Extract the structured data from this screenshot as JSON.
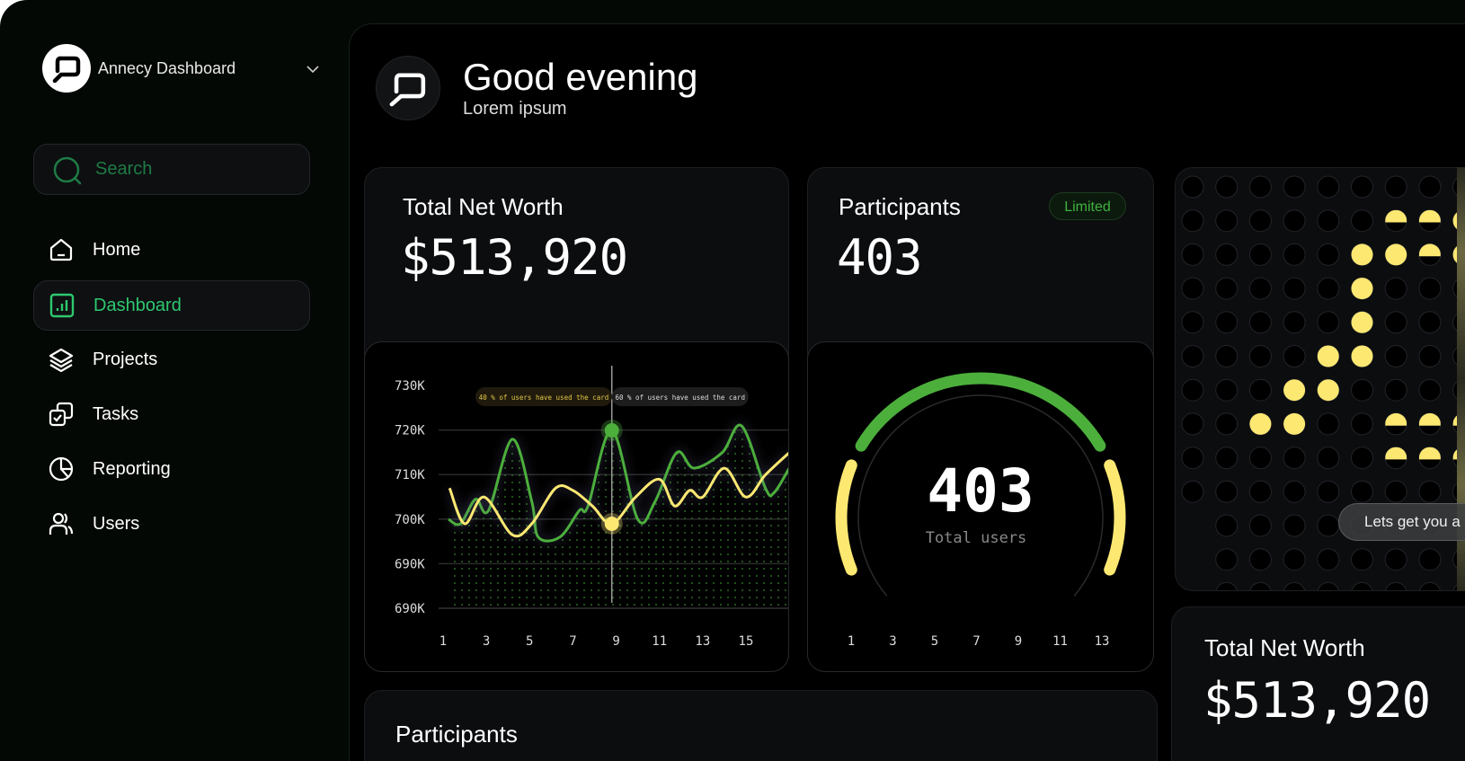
{
  "sidebar": {
    "brand": {
      "title": "Annecy Dashboard",
      "logo_icon": "search-window-logo",
      "dropdown_icon": "chevron-down-icon"
    },
    "search": {
      "placeholder": "Search",
      "icon": "search-icon"
    },
    "items": [
      {
        "label": "Home",
        "icon": "home-icon",
        "active": false
      },
      {
        "label": "Dashboard",
        "icon": "bar-chart-icon",
        "active": true
      },
      {
        "label": "Projects",
        "icon": "layers-icon",
        "active": false
      },
      {
        "label": "Tasks",
        "icon": "tasks-icon",
        "active": false
      },
      {
        "label": "Reporting",
        "icon": "pie-chart-icon",
        "active": false
      },
      {
        "label": "Users",
        "icon": "users-icon",
        "active": false
      }
    ]
  },
  "header": {
    "title": "Good evening",
    "subtitle": "Lorem ipsum"
  },
  "cards": {
    "net_worth": {
      "title": "Total Net Worth",
      "value": "$513,920"
    },
    "participants": {
      "title": "Participants",
      "value": "403",
      "badge": "Limited"
    },
    "pixel_card": {
      "tooltip": "Lets get you a"
    },
    "net_worth_2": {
      "title": "Total Net Worth",
      "value": "$513,920"
    },
    "participants_2": {
      "title": "Participants"
    }
  },
  "colors": {
    "accent_green": "#4caf3c",
    "accent_yellow": "#fde872",
    "nav_active": "#2ec86e",
    "background": "#000000"
  },
  "chart_data": [
    {
      "type": "line",
      "y_tick_labels": [
        "730K",
        "720K",
        "710K",
        "700K",
        "690K",
        "690K"
      ],
      "x_tick_labels": [
        "1",
        "3",
        "5",
        "7",
        "9",
        "11",
        "13",
        "15"
      ],
      "xlim": [
        1,
        17
      ],
      "ylim": [
        680,
        730
      ],
      "grid": "horizontal",
      "annotations": [
        "40 % of users have used the card",
        "60 % of users have used the card"
      ],
      "hover_x": 8.8,
      "series": [
        {
          "color": "#4caf3c",
          "area": true,
          "points": [
            [
              1.25,
              700
            ],
            [
              1.8,
              699
            ],
            [
              2.5,
              704.5
            ],
            [
              3.1,
              702
            ],
            [
              4.2,
              718
            ],
            [
              5.1,
              704
            ],
            [
              5.4,
              696
            ],
            [
              6.4,
              696
            ],
            [
              7.3,
              702
            ],
            [
              7.7,
              703
            ],
            [
              8.8,
              720
            ],
            [
              10,
              700
            ],
            [
              10.8,
              704
            ],
            [
              11.8,
              715
            ],
            [
              12.6,
              711.5
            ],
            [
              13.9,
              715
            ],
            [
              14.8,
              721
            ],
            [
              15.9,
              707
            ],
            [
              16.3,
              706
            ],
            [
              17,
              711.5
            ]
          ]
        },
        {
          "color": "#fde872",
          "area": false,
          "points": [
            [
              1.3,
              707
            ],
            [
              2,
              699
            ],
            [
              2.9,
              705
            ],
            [
              4.2,
              696.5
            ],
            [
              5.1,
              699
            ],
            [
              6.2,
              707
            ],
            [
              7,
              706.5
            ],
            [
              7.9,
              703
            ],
            [
              8.8,
              699
            ],
            [
              9.9,
              705
            ],
            [
              11,
              709
            ],
            [
              11.7,
              703
            ],
            [
              12.4,
              706.5
            ],
            [
              13,
              705
            ],
            [
              14,
              711.5
            ],
            [
              15,
              705
            ],
            [
              15.9,
              710
            ],
            [
              17,
              715
            ]
          ]
        }
      ]
    },
    {
      "type": "gauge",
      "value": "403",
      "label": "Total users",
      "x_tick_labels": [
        "1",
        "3",
        "5",
        "7",
        "9",
        "11",
        "13"
      ],
      "segments": [
        {
          "color": "#fde872",
          "from_deg": -112,
          "to_deg": -68
        },
        {
          "color": "#4caf3c",
          "from_deg": -59,
          "to_deg": 59
        },
        {
          "color": "#fde872",
          "from_deg": 68,
          "to_deg": 112
        }
      ]
    }
  ],
  "pixel_grid": {
    "dot_color": "#000000",
    "fill_color": "#fde872",
    "filled": [
      [
        6,
        1,
        "top"
      ],
      [
        7,
        1,
        "top"
      ],
      [
        8,
        1,
        "full"
      ],
      [
        5,
        2,
        "full"
      ],
      [
        6,
        2,
        "full"
      ],
      [
        7,
        2,
        "top"
      ],
      [
        8,
        2,
        "full"
      ],
      [
        5,
        3,
        "full"
      ],
      [
        5,
        4,
        "full"
      ],
      [
        4,
        5,
        "full"
      ],
      [
        5,
        5,
        "full"
      ],
      [
        3,
        6,
        "full"
      ],
      [
        4,
        6,
        "full"
      ],
      [
        2,
        7,
        "full"
      ],
      [
        3,
        7,
        "full"
      ],
      [
        6,
        7,
        "top"
      ],
      [
        7,
        7,
        "top"
      ],
      [
        8,
        7,
        "top"
      ],
      [
        6,
        8,
        "top"
      ],
      [
        7,
        8,
        "top"
      ],
      [
        8,
        8,
        "top"
      ]
    ]
  }
}
